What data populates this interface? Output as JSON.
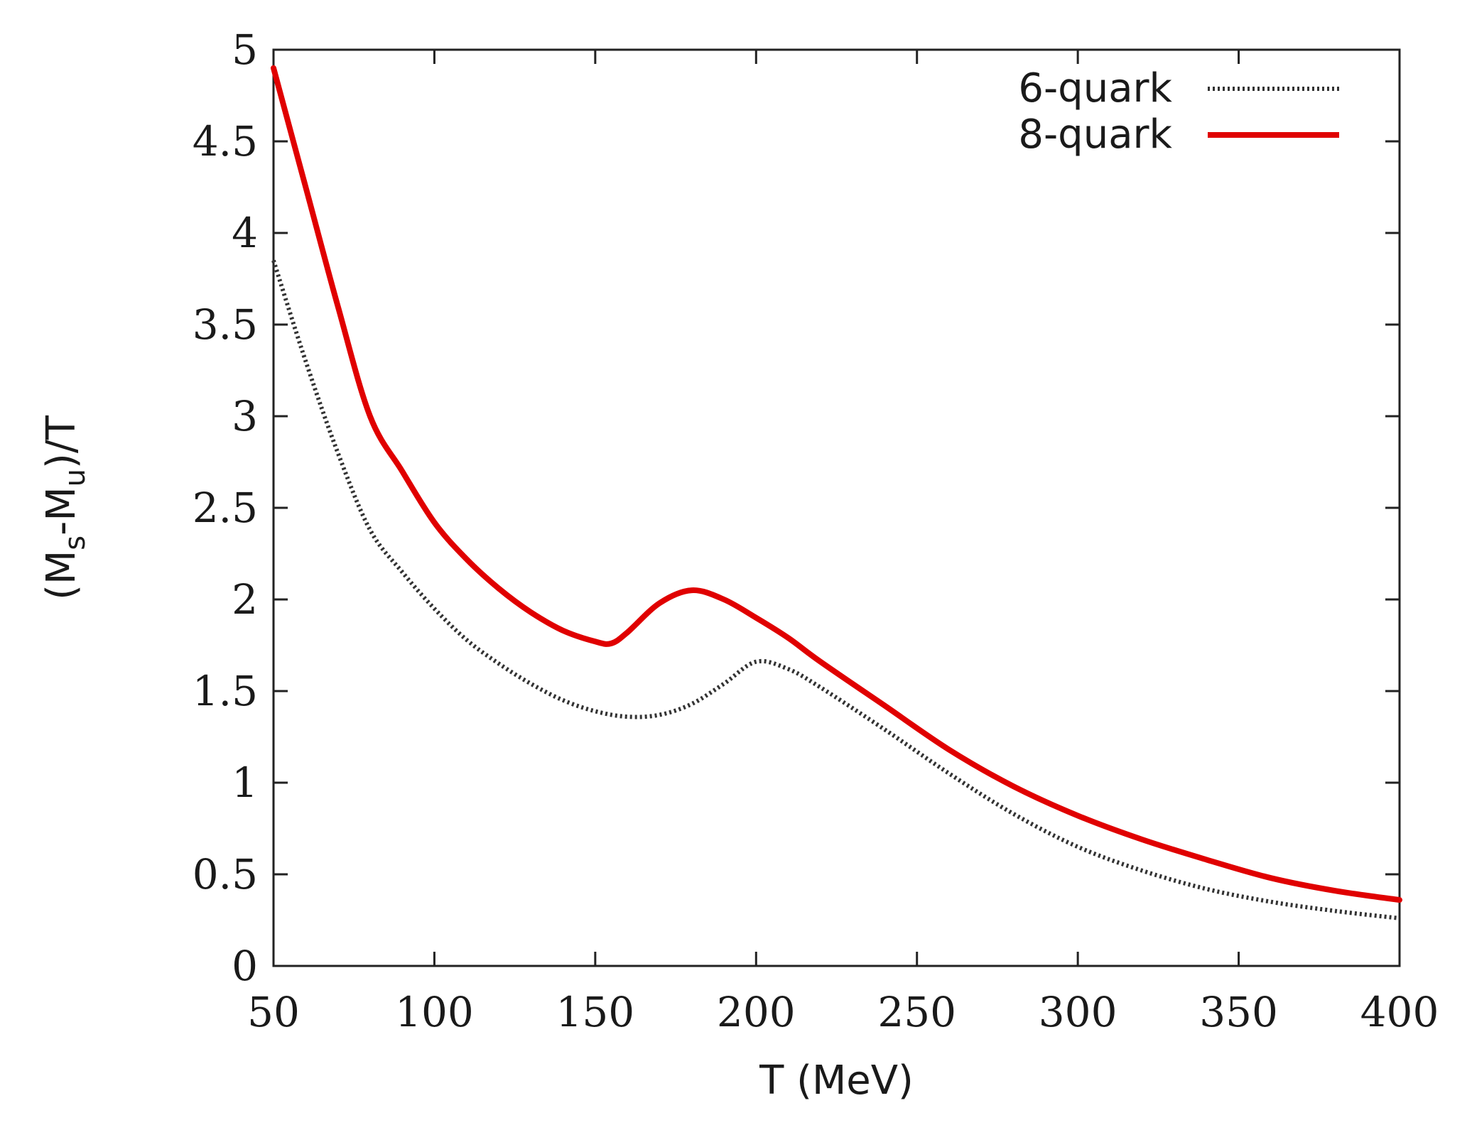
{
  "chart_data": {
    "type": "line",
    "title": "",
    "xlabel": "T (MeV)",
    "ylabel": "(M_s-M_u)/T",
    "ylabel_parts": {
      "open": "(M",
      "sub_s": "s",
      "mid": "-M",
      "sub_u": "u",
      "close": ")/T"
    },
    "xlim": [
      50,
      400
    ],
    "ylim": [
      0,
      5
    ],
    "xticks": [
      50,
      100,
      150,
      200,
      250,
      300,
      350,
      400
    ],
    "yticks": [
      0,
      0.5,
      1,
      1.5,
      2,
      2.5,
      3,
      3.5,
      4,
      4.5,
      5
    ],
    "xtick_labels": [
      "50",
      "100",
      "150",
      "200",
      "250",
      "300",
      "350",
      "400"
    ],
    "ytick_labels": [
      "0",
      "0.5",
      "1",
      "1.5",
      "2",
      "2.5",
      "3",
      "3.5",
      "4",
      "4.5",
      "5"
    ],
    "grid": false,
    "legend_position": "top-right",
    "series": [
      {
        "name": "6-quark",
        "style": "dotted",
        "color": "#333333",
        "x": [
          50,
          60,
          70,
          80,
          90,
          100,
          110,
          120,
          130,
          140,
          150,
          160,
          170,
          180,
          190,
          200,
          210,
          220,
          240,
          260,
          280,
          300,
          320,
          340,
          360,
          380,
          400
        ],
        "y": [
          3.85,
          3.3,
          2.8,
          2.38,
          2.15,
          1.95,
          1.78,
          1.65,
          1.54,
          1.45,
          1.39,
          1.36,
          1.37,
          1.43,
          1.54,
          1.66,
          1.62,
          1.52,
          1.29,
          1.05,
          0.83,
          0.65,
          0.52,
          0.42,
          0.35,
          0.3,
          0.26
        ]
      },
      {
        "name": "8-quark",
        "style": "solid",
        "color": "#e00000",
        "x": [
          50,
          60,
          70,
          80,
          90,
          100,
          110,
          120,
          130,
          140,
          150,
          155,
          160,
          170,
          180,
          190,
          200,
          210,
          220,
          240,
          260,
          280,
          300,
          320,
          340,
          360,
          380,
          400
        ],
        "y": [
          4.9,
          4.25,
          3.6,
          3.0,
          2.7,
          2.42,
          2.22,
          2.06,
          1.93,
          1.83,
          1.77,
          1.76,
          1.82,
          1.98,
          2.05,
          2.0,
          1.9,
          1.79,
          1.66,
          1.42,
          1.18,
          0.98,
          0.82,
          0.69,
          0.58,
          0.48,
          0.41,
          0.36
        ]
      }
    ]
  }
}
